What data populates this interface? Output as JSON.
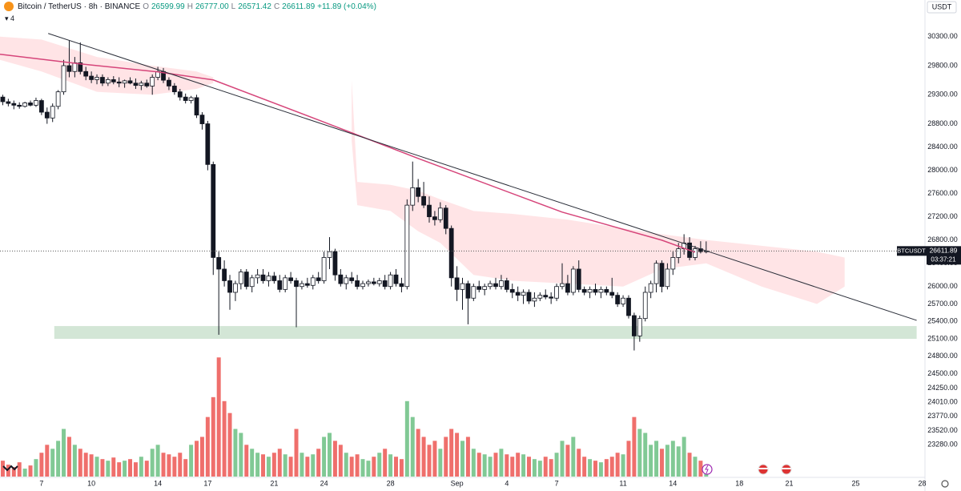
{
  "header": {
    "title": "Bitcoin / TetherUS · 8h · BINANCE",
    "open_label": "O",
    "open": "26599.99",
    "high_label": "H",
    "high": "26777.00",
    "low_label": "L",
    "low": "26571.42",
    "close_label": "C",
    "close": "26611.89",
    "change": "+11.89 (+0.04%)",
    "indicators": "▾ 4",
    "currency": "USDT"
  },
  "chart_data": {
    "type": "candlestick",
    "xlim": [
      -7.5,
      159.5
    ],
    "ylim": [
      22730,
      30930
    ],
    "volume_lim": [
      0,
      600
    ],
    "xticks": [
      {
        "value": 0,
        "label": "7"
      },
      {
        "value": 9,
        "label": "10"
      },
      {
        "value": 21,
        "label": "14"
      },
      {
        "value": 30,
        "label": "17"
      },
      {
        "value": 42,
        "label": "21"
      },
      {
        "value": 51,
        "label": "24"
      },
      {
        "value": 63,
        "label": "28"
      },
      {
        "value": 75,
        "label": "Sep"
      },
      {
        "value": 84,
        "label": "4"
      },
      {
        "value": 93,
        "label": "7"
      },
      {
        "value": 105,
        "label": "11"
      },
      {
        "value": 114,
        "label": "14"
      },
      {
        "value": 126,
        "label": "18"
      },
      {
        "value": 135,
        "label": "21"
      },
      {
        "value": 147,
        "label": "25"
      },
      {
        "value": 159,
        "label": "28"
      }
    ],
    "yticks": [
      {
        "value": 30300,
        "label": "30300.00"
      },
      {
        "value": 29800,
        "label": "29800.00"
      },
      {
        "value": 29300,
        "label": "29300.00"
      },
      {
        "value": 28800,
        "label": "28800.00"
      },
      {
        "value": 28400,
        "label": "28400.00"
      },
      {
        "value": 28000,
        "label": "28000.00"
      },
      {
        "value": 27600,
        "label": "27600.00"
      },
      {
        "value": 27200,
        "label": "27200.00"
      },
      {
        "value": 26800,
        "label": "26800.00"
      },
      {
        "value": 26400,
        "label": "26400.00"
      },
      {
        "value": 26000,
        "label": "26000.00"
      },
      {
        "value": 25700,
        "label": "25700.00"
      },
      {
        "value": 25400,
        "label": "25400.00"
      },
      {
        "value": 25100,
        "label": "25100.00"
      },
      {
        "value": 24800,
        "label": "24800.00"
      },
      {
        "value": 24500,
        "label": "24500.00"
      },
      {
        "value": 24250,
        "label": "24250.00"
      },
      {
        "value": 24010,
        "label": "24010.00"
      },
      {
        "value": 23770,
        "label": "23770.00"
      },
      {
        "value": 23520,
        "label": "23520.00"
      },
      {
        "value": 23280,
        "label": "23280.00"
      }
    ],
    "up_color": "#ffffff",
    "down_color": "#131722",
    "volume_up_color": "#81c995",
    "volume_down_color": "#ef6f6c",
    "x": [
      -7,
      -6,
      -5,
      -4,
      -3,
      -2,
      -1,
      0,
      1,
      2,
      3,
      4,
      5,
      6,
      7,
      8,
      9,
      10,
      11,
      12,
      13,
      14,
      15,
      16,
      17,
      18,
      19,
      20,
      21,
      22,
      23,
      24,
      25,
      26,
      27,
      28,
      29,
      30,
      31,
      32,
      33,
      34,
      35,
      36,
      37,
      38,
      39,
      40,
      41,
      42,
      43,
      44,
      45,
      46,
      47,
      48,
      49,
      50,
      51,
      52,
      53,
      54,
      55,
      56,
      57,
      58,
      59,
      60,
      61,
      62,
      63,
      64,
      65,
      66,
      67,
      68,
      69,
      70,
      71,
      72,
      73,
      74,
      75,
      76,
      77,
      78,
      79,
      80,
      81,
      82,
      83,
      84,
      85,
      86,
      87,
      88,
      89,
      90,
      91,
      92,
      93,
      94,
      95,
      96,
      97,
      98,
      99,
      100,
      101,
      102,
      103,
      104,
      105,
      106,
      107,
      108,
      109,
      110,
      111,
      112,
      113,
      114,
      115,
      116,
      117,
      118,
      119,
      120
    ],
    "open": [
      29260,
      29180,
      29150,
      29120,
      29100,
      29160,
      29120,
      29200,
      29000,
      28900,
      29100,
      29350,
      29800,
      29700,
      29850,
      29700,
      29620,
      29560,
      29600,
      29500,
      29560,
      29520,
      29500,
      29540,
      29500,
      29460,
      29500,
      29450,
      29600,
      29700,
      29550,
      29450,
      29350,
      29260,
      29200,
      29250,
      28950,
      28800,
      28100,
      26500,
      26300,
      26100,
      25900,
      26050,
      26250,
      26000,
      26150,
      26200,
      26100,
      26180,
      26100,
      25950,
      26150,
      26100,
      26000,
      26050,
      26020,
      26150,
      26100,
      26500,
      26600,
      26200,
      26050,
      26150,
      26100,
      26000,
      26050,
      26080,
      26050,
      26100,
      26000,
      26200,
      26050,
      26000,
      27400,
      27700,
      27550,
      27400,
      27200,
      27150,
      27350,
      27000,
      26150,
      25950,
      26050,
      25800,
      26000,
      25950,
      26000,
      26050,
      26000,
      26100,
      25950,
      25900,
      25850,
      25900,
      25750,
      25800,
      25850,
      25820,
      25800,
      26000,
      26050,
      25900,
      26300,
      25950,
      25900,
      25950,
      25900,
      25950,
      25900,
      25850,
      25700,
      25800,
      25500,
      25150,
      25450,
      25900,
      26050,
      26400,
      26000,
      26300,
      26500,
      26650,
      26750,
      26500,
      26650,
      26599.99
    ],
    "high": [
      29300,
      29230,
      29200,
      29170,
      29180,
      29200,
      29250,
      29230,
      29080,
      29150,
      29380,
      29900,
      30240,
      29950,
      30200,
      29780,
      29700,
      29650,
      29650,
      29600,
      29620,
      29600,
      29560,
      29600,
      29580,
      29540,
      29560,
      29650,
      29780,
      29760,
      29600,
      29500,
      29400,
      29320,
      29280,
      29300,
      29000,
      28850,
      28150,
      26600,
      26450,
      26200,
      26100,
      26300,
      26300,
      26200,
      26300,
      26300,
      26250,
      26250,
      26200,
      26200,
      26250,
      26150,
      26100,
      26150,
      26200,
      26250,
      26600,
      26850,
      26650,
      26300,
      26200,
      26250,
      26200,
      26100,
      26120,
      26150,
      26150,
      26200,
      26250,
      26300,
      26150,
      27500,
      28150,
      27850,
      27800,
      27550,
      27300,
      27450,
      27400,
      27050,
      26350,
      26150,
      26100,
      26050,
      26100,
      26050,
      26100,
      26150,
      26200,
      26150,
      26050,
      26000,
      25950,
      25950,
      25900,
      25900,
      25950,
      25900,
      26050,
      26400,
      26200,
      26350,
      26450,
      26000,
      26000,
      26050,
      26000,
      26000,
      26150,
      25900,
      25850,
      25850,
      25550,
      25500,
      26000,
      26100,
      26450,
      26450,
      26400,
      26600,
      26750,
      26900,
      26850,
      26700,
      26780,
      26777.0
    ],
    "low": [
      29120,
      29100,
      29050,
      29060,
      29080,
      29100,
      29090,
      28950,
      28800,
      28830,
      29050,
      29300,
      29600,
      29600,
      29650,
      29550,
      29500,
      29480,
      29450,
      29450,
      29480,
      29430,
      29420,
      29480,
      29400,
      29380,
      29420,
      29300,
      29550,
      29500,
      29380,
      29300,
      29200,
      29150,
      29150,
      28900,
      28700,
      28000,
      26200,
      25170,
      26000,
      25600,
      25750,
      25950,
      25950,
      25900,
      26050,
      26050,
      26000,
      26050,
      25900,
      25900,
      26050,
      25300,
      25950,
      25980,
      25950,
      26050,
      26050,
      26300,
      26100,
      26000,
      25950,
      26050,
      25950,
      25950,
      26000,
      26020,
      26000,
      25950,
      25950,
      26000,
      25900,
      25950,
      27300,
      27450,
      27350,
      27100,
      27050,
      27100,
      26900,
      26000,
      25750,
      25600,
      25350,
      25750,
      25900,
      25850,
      25950,
      25950,
      25950,
      25900,
      25800,
      25750,
      25700,
      25700,
      25650,
      25750,
      25780,
      25700,
      25750,
      25950,
      25850,
      25850,
      25900,
      25850,
      25800,
      25850,
      25800,
      25850,
      25800,
      25650,
      25650,
      25450,
      24900,
      25050,
      25400,
      25800,
      25900,
      25900,
      25950,
      26200,
      26400,
      26550,
      26450,
      26450,
      26570,
      26571.42
    ],
    "close": [
      29180,
      29150,
      29120,
      29100,
      29160,
      29120,
      29200,
      29000,
      28900,
      29100,
      29350,
      29800,
      29700,
      29850,
      29700,
      29620,
      29560,
      29600,
      29500,
      29560,
      29520,
      29500,
      29540,
      29500,
      29460,
      29500,
      29450,
      29600,
      29700,
      29550,
      29450,
      29350,
      29260,
      29200,
      29250,
      28950,
      28800,
      28100,
      26500,
      26300,
      26100,
      25900,
      26050,
      26250,
      26000,
      26150,
      26200,
      26100,
      26180,
      26100,
      25950,
      26150,
      26100,
      26000,
      26050,
      26020,
      26150,
      26100,
      26500,
      26600,
      26200,
      26050,
      26150,
      26100,
      26000,
      26050,
      26080,
      26050,
      26100,
      26000,
      26200,
      26050,
      26000,
      27400,
      27700,
      27550,
      27400,
      27200,
      27150,
      27350,
      27000,
      26150,
      25950,
      26050,
      25800,
      26000,
      25950,
      26000,
      26050,
      26000,
      26100,
      25950,
      25900,
      25850,
      25900,
      25750,
      25800,
      25850,
      25820,
      25800,
      26000,
      26050,
      25900,
      26300,
      25950,
      25900,
      25950,
      25900,
      25950,
      25900,
      25850,
      25700,
      25800,
      25500,
      25150,
      25450,
      25900,
      26050,
      26400,
      26000,
      26300,
      26500,
      26650,
      26750,
      26500,
      26650,
      26600,
      26611.89
    ],
    "volume": [
      20,
      15,
      12,
      18,
      10,
      14,
      22,
      30,
      40,
      35,
      45,
      60,
      50,
      40,
      35,
      30,
      28,
      25,
      22,
      20,
      24,
      18,
      20,
      22,
      18,
      25,
      20,
      35,
      40,
      30,
      28,
      25,
      30,
      22,
      40,
      45,
      50,
      75,
      100,
      150,
      95,
      80,
      60,
      55,
      40,
      35,
      30,
      28,
      25,
      30,
      35,
      28,
      25,
      60,
      30,
      25,
      28,
      35,
      50,
      55,
      45,
      40,
      30,
      25,
      28,
      22,
      20,
      25,
      30,
      35,
      28,
      25,
      22,
      95,
      75,
      60,
      50,
      40,
      45,
      35,
      50,
      60,
      55,
      45,
      50,
      35,
      30,
      28,
      25,
      30,
      35,
      28,
      25,
      30,
      28,
      25,
      22,
      20,
      25,
      22,
      30,
      45,
      40,
      50,
      35,
      25,
      22,
      20,
      18,
      22,
      25,
      30,
      28,
      45,
      75,
      60,
      55,
      40,
      45,
      35,
      40,
      45,
      38,
      50,
      30,
      25,
      20,
      15
    ],
    "ma": {
      "color": "#d6457a",
      "x": [
        -7.5,
        7,
        21,
        31,
        50,
        68,
        94,
        112,
        118
      ],
      "y": [
        29996,
        29831,
        29693,
        29555,
        28866,
        28204,
        27280,
        26797,
        26590
      ]
    },
    "cloud": {
      "color": "#ffcdd2",
      "x": [
        -7.5,
        0,
        10,
        20,
        28,
        31
      ],
      "upper": [
        30300,
        30250,
        29950,
        29800,
        29700,
        29600
      ],
      "lower": [
        29900,
        29700,
        29350,
        29300,
        29400,
        29500
      ]
    },
    "cloud2": {
      "color": "#ffcdd2",
      "x": [
        56,
        57,
        63,
        68,
        72,
        78,
        85,
        95,
        105,
        112,
        120,
        130,
        140,
        145
      ],
      "upper": [
        29550,
        27800,
        27750,
        27650,
        27500,
        27300,
        27250,
        27150,
        27000,
        26900,
        26800,
        26700,
        26600,
        26500
      ],
      "lower": [
        28500,
        27400,
        27300,
        26950,
        26750,
        26200,
        26100,
        26050,
        26000,
        26300,
        26400,
        26000,
        25700,
        26000
      ]
    },
    "trendline": {
      "color": "#2a2e39",
      "x": [
        1.2,
        158
      ],
      "y": [
        30355,
        25418
      ]
    },
    "zone": {
      "color": "#c8e0cc",
      "x": [
        2.3,
        158
      ],
      "y": [
        25100,
        25320
      ]
    },
    "price_tag": {
      "symbol": "BTCUSDT",
      "price": "26611.89",
      "countdown": "03:37:21"
    }
  }
}
